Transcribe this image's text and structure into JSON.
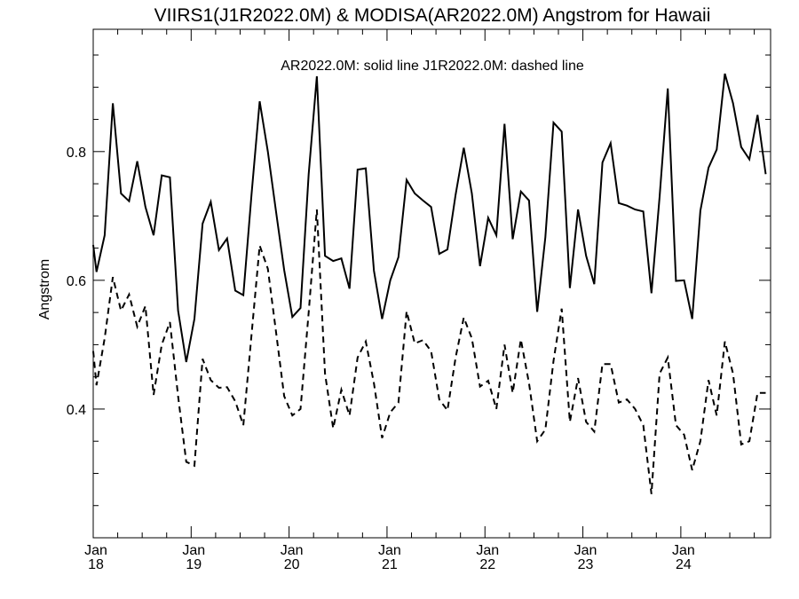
{
  "chart_data": {
    "type": "line",
    "title": "VIIRS1(J1R2022.0M) & MODISA(AR2022.0M)  Angstrom for Hawaii",
    "legend_text": "AR2022.0M: solid line   J1R2022.0M: dashed line",
    "ylabel": "Angstrom",
    "xlabel": "",
    "xlim": [
      0,
      83
    ],
    "ylim": [
      0.2,
      0.99
    ],
    "y_ticks": [
      {
        "value": 0.4,
        "label": "0.4"
      },
      {
        "value": 0.6,
        "label": "0.6"
      },
      {
        "value": 0.8,
        "label": "0.8"
      }
    ],
    "y_minor_step": 0.05,
    "x_ticks": [
      {
        "value": 0,
        "month": "Jan",
        "year": "18"
      },
      {
        "value": 12,
        "month": "Jan",
        "year": "19"
      },
      {
        "value": 24,
        "month": "Jan",
        "year": "20"
      },
      {
        "value": 36,
        "month": "Jan",
        "year": "21"
      },
      {
        "value": 48,
        "month": "Jan",
        "year": "22"
      },
      {
        "value": 60,
        "month": "Jan",
        "year": "23"
      },
      {
        "value": 72,
        "month": "Jan",
        "year": "24"
      }
    ],
    "x_minor_step": 3,
    "grid": false,
    "series": [
      {
        "name": "AR2022.0M",
        "style": "solid",
        "color": "#000000",
        "x": [
          -0.6,
          0.4,
          1.4,
          2.4,
          3.4,
          4.4,
          5.4,
          6.4,
          7.4,
          8.4,
          9.4,
          10.4,
          11.4,
          12.4,
          13.4,
          14.4,
          15.4,
          16.4,
          17.4,
          18.4,
          19.4,
          20.4,
          21.4,
          22.4,
          23.4,
          24.4,
          25.4,
          26.4,
          27.4,
          28.4,
          29.4,
          30.4,
          31.4,
          32.4,
          33.4,
          34.4,
          35.4,
          36.4,
          37.4,
          38.4,
          39.4,
          40.4,
          41.4,
          42.4,
          43.4,
          44.4,
          45.4,
          46.4,
          47.4,
          48.4,
          49.4,
          50.4,
          51.4,
          52.4,
          53.4,
          54.4,
          55.4,
          56.4,
          57.4,
          58.4,
          59.4,
          60.4,
          61.4,
          62.4,
          63.4,
          64.4,
          65.4,
          66.4,
          67.4,
          68.4,
          69.4,
          70.4,
          71.4,
          72.4,
          73.4,
          74.4,
          75.4,
          76.4,
          77.4,
          78.4,
          79.4,
          80.4,
          81.4,
          82.4
        ],
        "values": [
          0.655,
          0.613,
          0.67,
          0.875,
          0.735,
          0.723,
          0.785,
          0.714,
          0.67,
          0.763,
          0.76,
          0.553,
          0.473,
          0.54,
          0.688,
          0.722,
          0.647,
          0.665,
          0.584,
          0.577,
          0.733,
          0.878,
          0.8,
          0.707,
          0.616,
          0.543,
          0.557,
          0.765,
          0.917,
          0.638,
          0.63,
          0.634,
          0.587,
          0.772,
          0.774,
          0.615,
          0.54,
          0.6,
          0.636,
          0.756,
          0.735,
          0.724,
          0.714,
          0.641,
          0.648,
          0.733,
          0.806,
          0.735,
          0.622,
          0.697,
          0.67,
          0.843,
          0.664,
          0.738,
          0.724,
          0.551,
          0.667,
          0.845,
          0.831,
          0.588,
          0.71,
          0.638,
          0.594,
          0.783,
          0.813,
          0.72,
          0.716,
          0.71,
          0.707,
          0.58,
          0.73,
          0.898,
          0.599,
          0.6,
          0.54,
          0.708,
          0.775,
          0.803,
          0.921,
          0.875,
          0.807,
          0.788,
          0.857,
          0.765
        ]
      },
      {
        "name": "J1R2022.0M",
        "style": "dashed",
        "color": "#000000",
        "x": [
          -0.6,
          0.4,
          1.4,
          2.4,
          3.4,
          4.4,
          5.4,
          6.4,
          7.4,
          8.4,
          9.4,
          10.4,
          11.4,
          12.4,
          13.4,
          14.4,
          15.4,
          16.4,
          17.4,
          18.4,
          19.4,
          20.4,
          21.4,
          22.4,
          23.4,
          24.4,
          25.4,
          26.4,
          27.4,
          28.4,
          29.4,
          30.4,
          31.4,
          32.4,
          33.4,
          34.4,
          35.4,
          36.4,
          37.4,
          38.4,
          39.4,
          40.4,
          41.4,
          42.4,
          43.4,
          44.4,
          45.4,
          46.4,
          47.4,
          48.4,
          49.4,
          50.4,
          51.4,
          52.4,
          53.4,
          54.4,
          55.4,
          56.4,
          57.4,
          58.4,
          59.4,
          60.4,
          61.4,
          62.4,
          63.4,
          64.4,
          65.4,
          66.4,
          67.4,
          68.4,
          69.4,
          70.4,
          71.4,
          72.4,
          73.4,
          74.4,
          75.4,
          76.4,
          77.4,
          78.4,
          79.4,
          80.4,
          81.4,
          82.4
        ],
        "values": [
          0.49,
          0.437,
          0.51,
          0.605,
          0.553,
          0.578,
          0.528,
          0.56,
          0.422,
          0.5,
          0.535,
          0.42,
          0.318,
          0.312,
          0.478,
          0.445,
          0.433,
          0.434,
          0.412,
          0.375,
          0.515,
          0.654,
          0.618,
          0.52,
          0.42,
          0.39,
          0.4,
          0.55,
          0.71,
          0.455,
          0.37,
          0.43,
          0.39,
          0.48,
          0.505,
          0.44,
          0.355,
          0.395,
          0.41,
          0.552,
          0.502,
          0.507,
          0.49,
          0.415,
          0.398,
          0.48,
          0.542,
          0.51,
          0.435,
          0.444,
          0.4,
          0.5,
          0.425,
          0.508,
          0.44,
          0.35,
          0.368,
          0.475,
          0.556,
          0.38,
          0.448,
          0.38,
          0.365,
          0.47,
          0.47,
          0.41,
          0.415,
          0.4,
          0.375,
          0.268,
          0.455,
          0.48,
          0.375,
          0.36,
          0.305,
          0.35,
          0.445,
          0.39,
          0.505,
          0.455,
          0.345,
          0.35,
          0.425,
          0.425
        ]
      }
    ]
  }
}
